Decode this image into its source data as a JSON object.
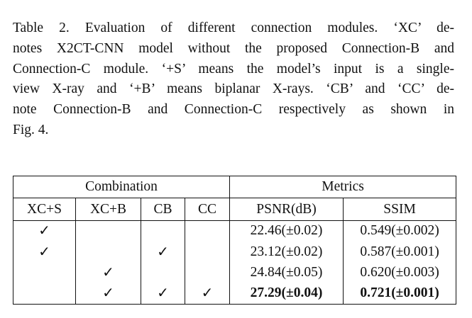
{
  "caption_lines": [
    "Table 2. Evaluation of different connection modules. ‘XC’ de-",
    "notes X2CT-CNN model without the proposed Connection-B and",
    "Connection-C module. ‘+S’ means the model’s input is a single-",
    "view X-ray and ‘+B’ means biplanar X-rays. ‘CB’ and ‘CC’ de-",
    "note Connection-B and Connection-C respectively as shown in",
    "Fig. 4."
  ],
  "table": {
    "group_headers": {
      "combination": "Combination",
      "metrics": "Metrics"
    },
    "column_headers": [
      "XC+S",
      "XC+B",
      "CB",
      "CC",
      "PSNR(dB)",
      "SSIM"
    ],
    "rows": [
      {
        "xcs": "✓",
        "xcb": "",
        "cb": "",
        "cc": "",
        "psnr": "22.46(±0.02)",
        "ssim": "0.549(±0.002)"
      },
      {
        "xcs": "✓",
        "xcb": "",
        "cb": "✓",
        "cc": "",
        "psnr": "23.12(±0.02)",
        "ssim": "0.587(±0.001)"
      },
      {
        "xcs": "",
        "xcb": "✓",
        "cb": "",
        "cc": "",
        "psnr": "24.84(±0.05)",
        "ssim": "0.620(±0.003)"
      },
      {
        "xcs": "",
        "xcb": "✓",
        "cb": "✓",
        "cc": "✓",
        "psnr": "27.29(±0.04)",
        "ssim": "0.721(±0.001)"
      }
    ],
    "best_row_bold": true
  }
}
